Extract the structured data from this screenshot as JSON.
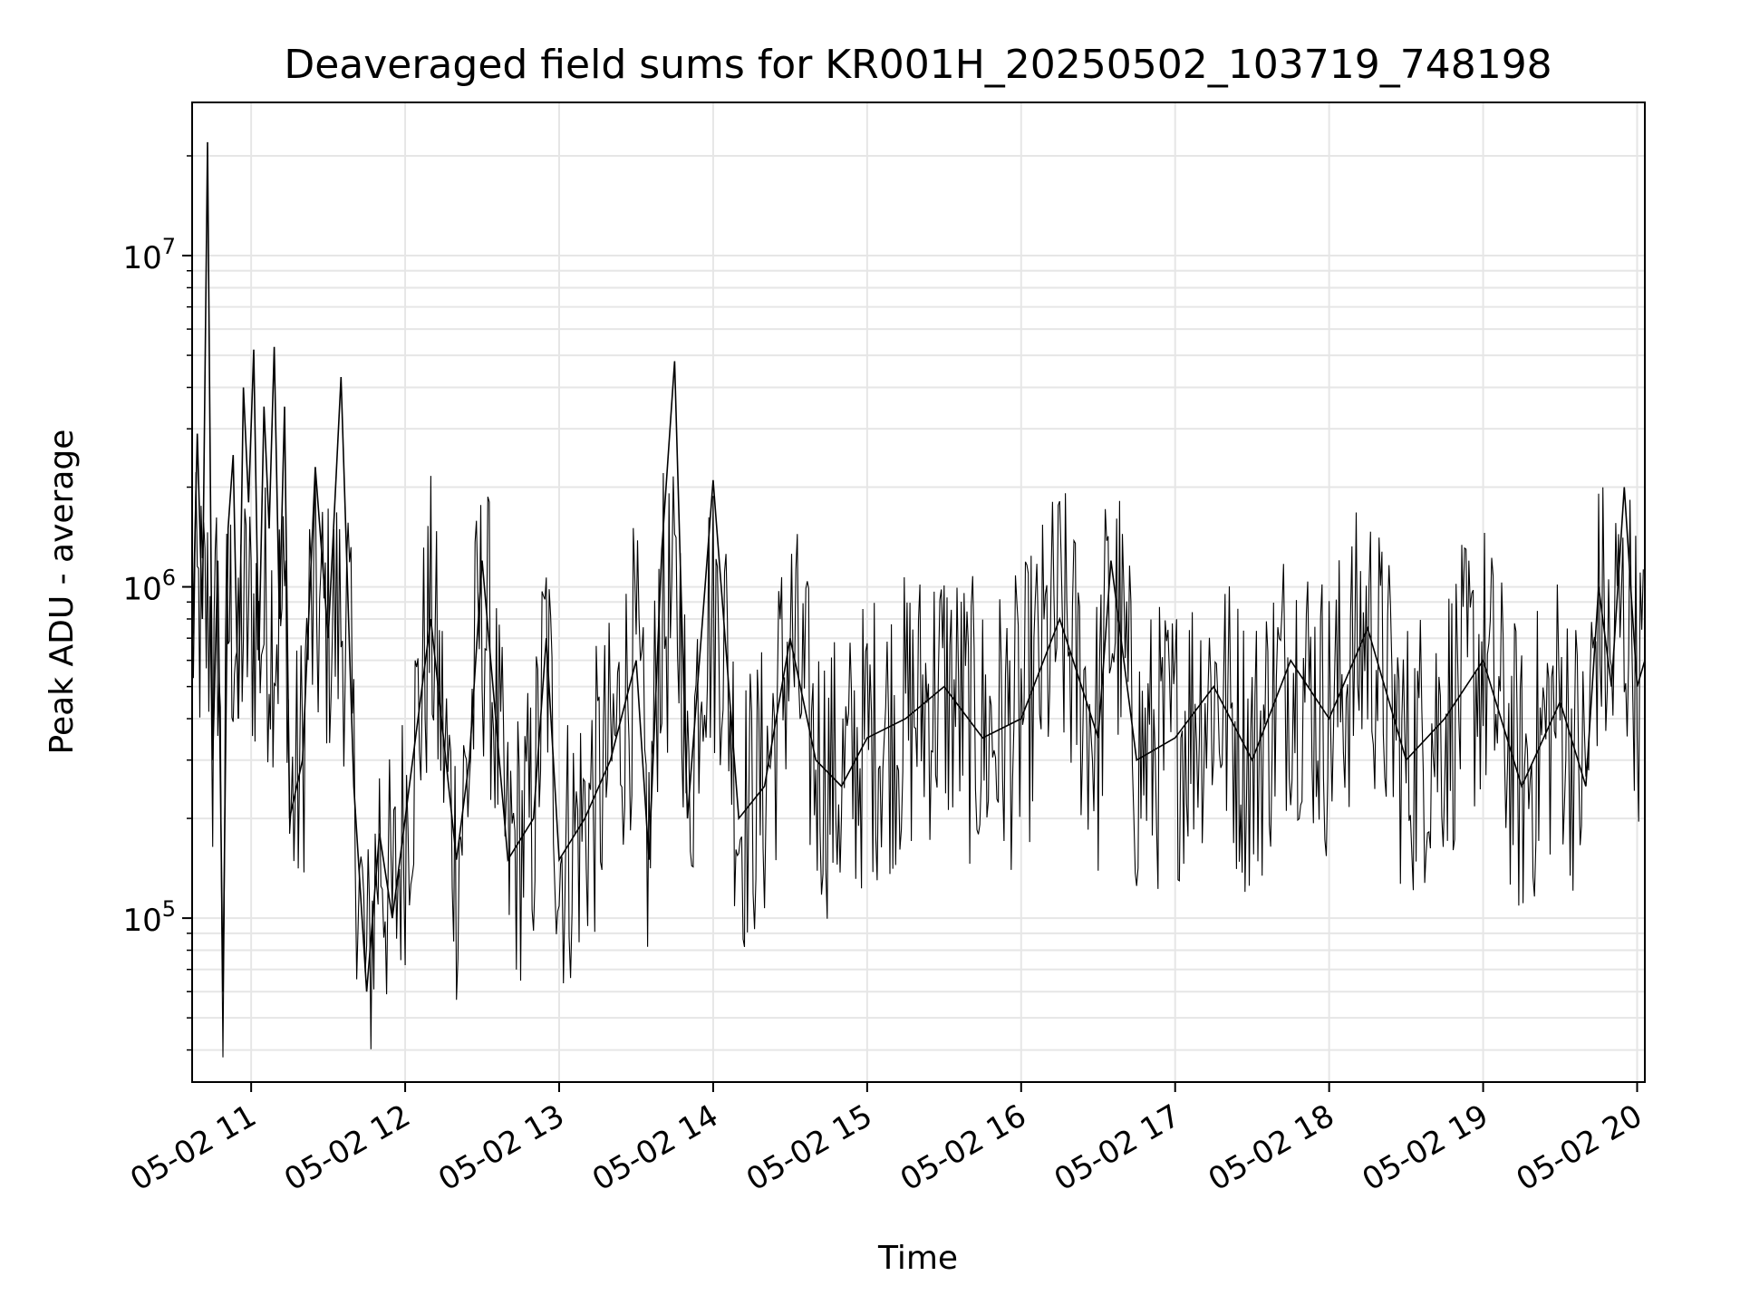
{
  "chart_data": {
    "type": "line",
    "title": "Deaveraged field sums for KR001H_20250502_103719_748198",
    "xlabel": "Time",
    "ylabel": "Peak ADU - average",
    "x_scale": "time",
    "y_scale": "log",
    "xlim": [
      "2025-05-02 10:37",
      "2025-05-02 20:03"
    ],
    "ylim": [
      32000,
      29000000
    ],
    "grid": true,
    "legend": "none",
    "line_color": "#000000",
    "x_ticks": [
      {
        "value": "2025-05-02 11:00",
        "label": "05-02 11"
      },
      {
        "value": "2025-05-02 12:00",
        "label": "05-02 12"
      },
      {
        "value": "2025-05-02 13:00",
        "label": "05-02 13"
      },
      {
        "value": "2025-05-02 14:00",
        "label": "05-02 14"
      },
      {
        "value": "2025-05-02 15:00",
        "label": "05-02 15"
      },
      {
        "value": "2025-05-02 16:00",
        "label": "05-02 16"
      },
      {
        "value": "2025-05-02 17:00",
        "label": "05-02 17"
      },
      {
        "value": "2025-05-02 18:00",
        "label": "05-02 18"
      },
      {
        "value": "2025-05-02 19:00",
        "label": "05-02 19"
      },
      {
        "value": "2025-05-02 20:00",
        "label": "05-02 20"
      }
    ],
    "y_ticks": [
      {
        "value": 100000,
        "base": "10",
        "exp": "5"
      },
      {
        "value": 1000000,
        "base": "10",
        "exp": "6"
      },
      {
        "value": 10000000,
        "base": "10",
        "exp": "7"
      }
    ],
    "series": [
      {
        "x": [
          "2025-05-02 10:37",
          "2025-05-02 10:39",
          "2025-05-02 10:41",
          "2025-05-02 10:43",
          "2025-05-02 10:45",
          "2025-05-02 10:47",
          "2025-05-02 10:49",
          "2025-05-02 10:51",
          "2025-05-02 10:53",
          "2025-05-02 10:55",
          "2025-05-02 10:57",
          "2025-05-02 10:59",
          "2025-05-02 11:01",
          "2025-05-02 11:03",
          "2025-05-02 11:05",
          "2025-05-02 11:07",
          "2025-05-02 11:09",
          "2025-05-02 11:11",
          "2025-05-02 11:13",
          "2025-05-02 11:15",
          "2025-05-02 11:20",
          "2025-05-02 11:25",
          "2025-05-02 11:30",
          "2025-05-02 11:35",
          "2025-05-02 11:40",
          "2025-05-02 11:45",
          "2025-05-02 11:50",
          "2025-05-02 11:55",
          "2025-05-02 12:00",
          "2025-05-02 12:10",
          "2025-05-02 12:20",
          "2025-05-02 12:25",
          "2025-05-02 12:30",
          "2025-05-02 12:40",
          "2025-05-02 12:50",
          "2025-05-02 12:55",
          "2025-05-02 13:00",
          "2025-05-02 13:10",
          "2025-05-02 13:20",
          "2025-05-02 13:30",
          "2025-05-02 13:35",
          "2025-05-02 13:40",
          "2025-05-02 13:45",
          "2025-05-02 13:50",
          "2025-05-02 14:00",
          "2025-05-02 14:10",
          "2025-05-02 14:20",
          "2025-05-02 14:30",
          "2025-05-02 14:40",
          "2025-05-02 14:50",
          "2025-05-02 15:00",
          "2025-05-02 15:15",
          "2025-05-02 15:30",
          "2025-05-02 15:45",
          "2025-05-02 16:00",
          "2025-05-02 16:15",
          "2025-05-02 16:30",
          "2025-05-02 16:35",
          "2025-05-02 16:45",
          "2025-05-02 17:00",
          "2025-05-02 17:15",
          "2025-05-02 17:30",
          "2025-05-02 17:45",
          "2025-05-02 18:00",
          "2025-05-02 18:15",
          "2025-05-02 18:30",
          "2025-05-02 18:45",
          "2025-05-02 19:00",
          "2025-05-02 19:15",
          "2025-05-02 19:30",
          "2025-05-02 19:40",
          "2025-05-02 19:45",
          "2025-05-02 19:50",
          "2025-05-02 19:55",
          "2025-05-02 20:00",
          "2025-05-02 20:03"
        ],
        "y": [
          600000,
          2900000,
          800000,
          22000000,
          300000,
          1200000,
          60000,
          1500000,
          2500000,
          400000,
          4000000,
          1800000,
          5200000,
          600000,
          3500000,
          1500000,
          5300000,
          800000,
          3500000,
          200000,
          300000,
          2300000,
          700000,
          4300000,
          250000,
          60000,
          180000,
          100000,
          200000,
          800000,
          150000,
          300000,
          1200000,
          150000,
          200000,
          700000,
          150000,
          200000,
          300000,
          600000,
          150000,
          1300000,
          4800000,
          200000,
          2100000,
          200000,
          250000,
          700000,
          300000,
          250000,
          350000,
          400000,
          500000,
          350000,
          400000,
          800000,
          350000,
          1200000,
          300000,
          350000,
          500000,
          300000,
          600000,
          400000,
          750000,
          300000,
          400000,
          600000,
          250000,
          450000,
          250000,
          1000000,
          500000,
          2000000,
          500000,
          600000
        ]
      }
    ]
  }
}
